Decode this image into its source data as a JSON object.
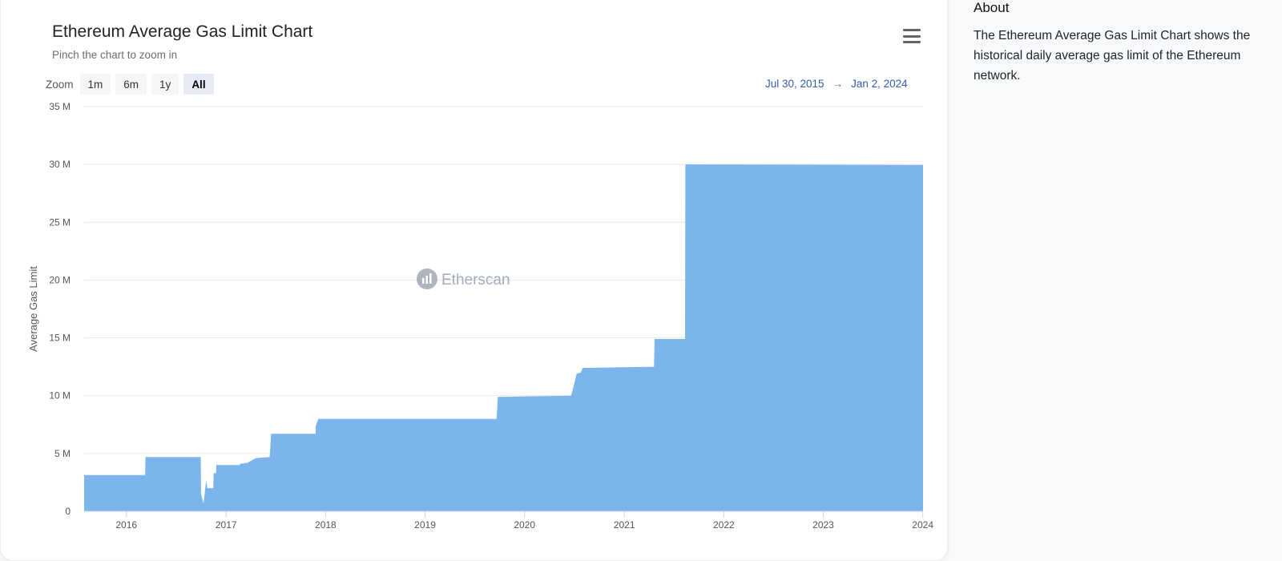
{
  "chart_data": {
    "type": "area",
    "title": "Ethereum Average Gas Limit Chart",
    "subtitle": "Pinch the chart to zoom in",
    "xlabel": "",
    "ylabel": "Average Gas Limit",
    "x_range": [
      "2015-07-30",
      "2024-01-02"
    ],
    "ylim": [
      0,
      35000000
    ],
    "y_ticks": [
      "0",
      "5 M",
      "10 M",
      "15 M",
      "20 M",
      "25 M",
      "30 M",
      "35 M"
    ],
    "x_ticks": [
      "2016",
      "2017",
      "2018",
      "2019",
      "2020",
      "2021",
      "2022",
      "2023",
      "2024"
    ],
    "grid": true,
    "legend": false,
    "series": [
      {
        "color": "#7cb5ec",
        "points": [
          [
            "2015-07-30",
            3140000
          ],
          [
            "2016-03-10",
            3140000
          ],
          [
            "2016-03-11",
            4700000
          ],
          [
            "2016-09-30",
            4700000
          ],
          [
            "2016-10-01",
            1500000
          ],
          [
            "2016-10-10",
            700000
          ],
          [
            "2016-10-20",
            2700000
          ],
          [
            "2016-10-24",
            2000000
          ],
          [
            "2016-11-15",
            2000000
          ],
          [
            "2016-11-16",
            3300000
          ],
          [
            "2016-11-25",
            3300000
          ],
          [
            "2016-11-26",
            4000000
          ],
          [
            "2017-02-20",
            4000000
          ],
          [
            "2017-02-21",
            4100000
          ],
          [
            "2017-03-20",
            4200000
          ],
          [
            "2017-04-20",
            4600000
          ],
          [
            "2017-06-10",
            4700000
          ],
          [
            "2017-06-15",
            6700000
          ],
          [
            "2017-11-25",
            6700000
          ],
          [
            "2017-11-26",
            7400000
          ],
          [
            "2017-12-05",
            8000000
          ],
          [
            "2019-09-20",
            8000000
          ],
          [
            "2019-09-25",
            9900000
          ],
          [
            "2020-06-20",
            10000000
          ],
          [
            "2020-07-10",
            11900000
          ],
          [
            "2020-07-25",
            12000000
          ],
          [
            "2020-08-01",
            12400000
          ],
          [
            "2021-04-20",
            12500000
          ],
          [
            "2021-04-22",
            14900000
          ],
          [
            "2021-08-12",
            14900000
          ],
          [
            "2021-08-13",
            30000000
          ],
          [
            "2024-01-02",
            29950000
          ]
        ]
      }
    ],
    "watermark": "Etherscan",
    "zoom_label": "Zoom",
    "zoom_options": [
      "1m",
      "6m",
      "1y",
      "All"
    ],
    "zoom_selected": "All",
    "range_from": "Jul 30, 2015",
    "range_to": "Jan 2, 2024",
    "range_arrow": "→"
  },
  "about": {
    "title": "About",
    "text": "The Ethereum Average Gas Limit Chart shows the historical daily average gas limit of the Ethereum network."
  },
  "icons": {
    "menu": "hamburger-menu-icon",
    "watermark_logo": "etherscan-logo-icon"
  }
}
